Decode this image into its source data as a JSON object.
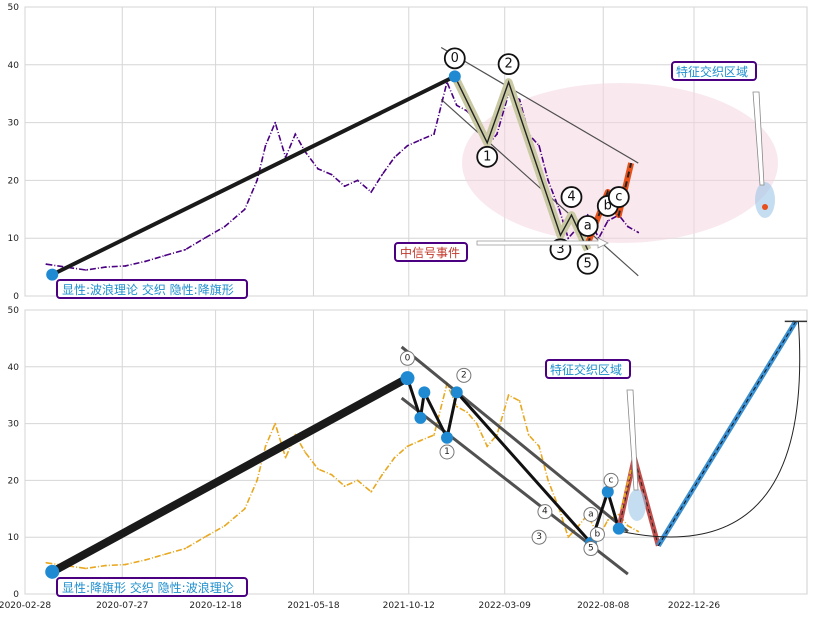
{
  "colors": {
    "price_top": "#4b0082",
    "price_bottom": "#e8a820",
    "trend": "#1a1a1a",
    "wave_fill": "#c9c9a3",
    "correction": "#e8501a",
    "marker": "#1f8ad2",
    "annot_text": "#1f8fcf",
    "annot_border": "#4b0082",
    "event_text": "#c0392b",
    "ellipse": "#f4d7e0",
    "forecast_red": "#c0504d",
    "forecast_blue": "#3a8fd0"
  },
  "chart_data": [
    {
      "type": "line",
      "name": "top-panel",
      "x_dates": [
        "2020-04-01",
        "2020-05-01",
        "2020-06-01",
        "2020-07-01",
        "2020-08-01",
        "2020-09-01",
        "2020-10-01",
        "2020-11-01",
        "2020-12-01",
        "2021-01-01",
        "2021-02-01",
        "2021-02-20",
        "2021-03-05",
        "2021-03-20",
        "2021-04-05",
        "2021-04-20",
        "2021-05-05",
        "2021-05-25",
        "2021-06-15",
        "2021-07-05",
        "2021-07-25",
        "2021-08-15",
        "2021-09-01",
        "2021-09-20",
        "2021-10-10",
        "2021-10-30",
        "2021-11-20",
        "2021-12-10",
        "2021-12-25",
        "2022-01-10",
        "2022-01-25",
        "2022-02-10",
        "2022-02-25",
        "2022-03-15",
        "2022-04-01",
        "2022-04-15",
        "2022-05-01",
        "2022-05-15",
        "2022-06-01",
        "2022-06-15",
        "2022-07-01",
        "2022-07-15",
        "2022-08-01",
        "2022-08-15",
        "2022-09-01",
        "2022-09-15",
        "2022-10-01"
      ],
      "values": [
        5.5,
        5,
        4.5,
        5,
        5.2,
        6,
        7,
        8,
        10,
        12,
        15,
        20,
        26,
        30,
        24,
        28,
        25,
        22,
        21,
        19,
        20,
        18,
        21,
        24,
        26,
        27,
        28,
        37,
        33,
        32,
        30,
        26,
        28,
        35,
        34,
        28,
        26,
        20,
        15,
        10,
        12,
        14,
        10,
        13,
        14,
        12,
        11
      ],
      "ylim": [
        0,
        50
      ],
      "yticks": [
        0,
        10,
        20,
        30,
        40,
        50
      ],
      "xticks": [
        "2020-02-28",
        "2020-07-27",
        "2020-12-18",
        "2021-05-18",
        "2021-10-12",
        "2022-03-09",
        "2022-08-08",
        "2022-12-26"
      ],
      "trend_line": [
        [
          "2020-04-10",
          3.7
        ],
        [
          "2021-12-22",
          38
        ]
      ],
      "wave_points": [
        [
          "2021-12-22",
          38,
          "0"
        ],
        [
          "2022-02-10",
          26.5,
          "1"
        ],
        [
          "2022-03-15",
          37,
          "2"
        ],
        [
          "2022-06-03",
          10.5,
          "3"
        ],
        [
          "2022-06-20",
          14,
          "4"
        ],
        [
          "2022-07-15",
          8,
          "5"
        ]
      ],
      "correction_points": [
        [
          "2022-07-15",
          9,
          "a"
        ],
        [
          "2022-08-15",
          18,
          "b"
        ],
        [
          "2022-09-01",
          14,
          "c"
        ],
        [
          "2022-09-20",
          23,
          ""
        ]
      ],
      "channel_lines": [
        [
          [
            "2021-12-01",
            43
          ],
          [
            "2022-10-01",
            23
          ]
        ],
        [
          [
            "2021-12-01",
            34
          ],
          [
            "2022-10-01",
            3.5
          ]
        ]
      ],
      "labels": {
        "bottom": "显性:波浪理论 交织 隐性:降旗形",
        "event": "中信号事件",
        "zone": "特征交织区域"
      }
    },
    {
      "type": "line",
      "name": "bottom-panel",
      "x_dates": [
        "2020-04-01",
        "2020-05-01",
        "2020-06-01",
        "2020-07-01",
        "2020-08-01",
        "2020-09-01",
        "2020-10-01",
        "2020-11-01",
        "2020-12-01",
        "2021-01-01",
        "2021-02-01",
        "2021-02-20",
        "2021-03-05",
        "2021-03-20",
        "2021-04-05",
        "2021-04-20",
        "2021-05-05",
        "2021-05-25",
        "2021-06-15",
        "2021-07-05",
        "2021-07-25",
        "2021-08-15",
        "2021-09-01",
        "2021-09-20",
        "2021-10-10",
        "2021-10-30",
        "2021-11-20",
        "2021-12-10",
        "2021-12-25",
        "2022-01-10",
        "2022-01-25",
        "2022-02-10",
        "2022-02-25",
        "2022-03-15",
        "2022-04-01",
        "2022-04-15",
        "2022-05-01",
        "2022-05-15",
        "2022-06-01",
        "2022-06-15",
        "2022-07-01",
        "2022-07-15",
        "2022-08-01",
        "2022-08-15",
        "2022-09-01",
        "2022-09-15",
        "2022-10-01"
      ],
      "values": [
        5.5,
        5,
        4.5,
        5,
        5.2,
        6,
        7,
        8,
        10,
        12,
        15,
        20,
        26,
        30,
        24,
        28,
        25,
        22,
        21,
        19,
        20,
        18,
        21,
        24,
        26,
        27,
        28,
        37,
        33,
        32,
        30,
        26,
        28,
        35,
        34,
        28,
        26,
        20,
        15,
        10,
        12,
        14,
        10,
        13,
        14,
        12,
        11
      ],
      "ylim": [
        0,
        50
      ],
      "yticks": [
        0,
        10,
        20,
        30,
        40,
        50
      ],
      "xticks": [
        "2020-02-28",
        "2020-07-27",
        "2020-12-18",
        "2021-05-18",
        "2021-10-12",
        "2022-03-09",
        "2022-08-08",
        "2022-12-26"
      ],
      "trend_line": [
        [
          "2020-04-10",
          3.9
        ],
        [
          "2021-10-10",
          38
        ]
      ],
      "markers": [
        [
          "2020-04-10",
          3.9
        ],
        [
          "2021-10-10",
          38
        ],
        [
          "2021-10-30",
          31
        ],
        [
          "2021-11-05",
          35.5
        ],
        [
          "2021-12-10",
          27.5
        ],
        [
          "2021-12-25",
          35.5
        ],
        [
          "2022-07-20",
          9
        ],
        [
          "2022-08-15",
          18
        ],
        [
          "2022-09-01",
          11.5
        ]
      ],
      "wave_labels": [
        [
          "2021-10-10",
          41.5,
          "0"
        ],
        [
          "2021-12-10",
          25,
          "1"
        ],
        [
          "2022-01-05",
          38.5,
          "2"
        ],
        [
          "2022-05-01",
          10,
          "3"
        ],
        [
          "2022-05-10",
          14.5,
          "4"
        ],
        [
          "2022-07-20",
          8,
          "5"
        ],
        [
          "2022-07-20",
          14,
          "a"
        ],
        [
          "2022-07-30",
          10.5,
          "b"
        ],
        [
          "2022-08-20",
          20,
          "c"
        ]
      ],
      "channel_lines": [
        [
          [
            "2021-10-01",
            43.5
          ],
          [
            "2022-09-15",
            11
          ]
        ],
        [
          [
            "2021-10-01",
            34.5
          ],
          [
            "2022-09-15",
            3.5
          ]
        ]
      ],
      "forecast_red": [
        [
          "2022-09-01",
          11.5
        ],
        [
          "2022-09-25",
          24
        ],
        [
          "2022-11-01",
          8.5
        ]
      ],
      "forecast_blue": [
        [
          "2022-11-01",
          8.5
        ],
        [
          "2023-06-01",
          48
        ]
      ],
      "labels": {
        "bottom": "显性:降旗形 交织 隐性:波浪理论",
        "zone": "特征交织区域"
      }
    }
  ]
}
